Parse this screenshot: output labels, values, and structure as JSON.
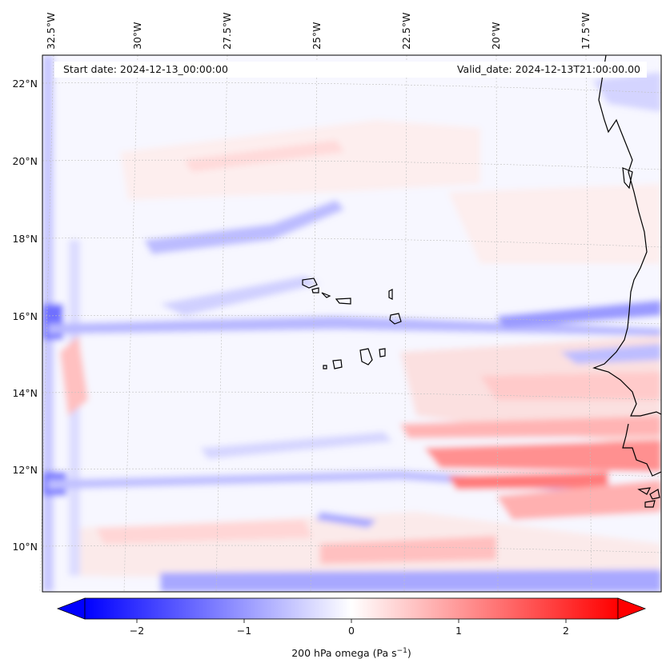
{
  "header": {
    "start_date": "Start date: 2024-12-13_00:00:00",
    "valid_date": "Valid_date: 2024-12-13T21:00:00.00"
  },
  "map": {
    "lon_labels": [
      "32.5°W",
      "30°W",
      "27.5°W",
      "25°W",
      "22.5°W",
      "20°W",
      "17.5°W"
    ],
    "lat_labels": [
      "22°N",
      "20°N",
      "18°N",
      "16°N",
      "14°N",
      "12°N",
      "10°N"
    ],
    "field_variable": "omega",
    "level": "200 hPa"
  },
  "colorbar": {
    "label_prefix": "200 hPa omega (Pa s",
    "label_exp": "−1",
    "label_suffix": ")",
    "ticks": [
      "−2",
      "−1",
      "0",
      "1",
      "2"
    ],
    "range": [
      -2.6,
      2.6
    ],
    "low_color": "#0000ff",
    "mid_color": "#ffffff",
    "high_color": "#ff0000"
  }
}
